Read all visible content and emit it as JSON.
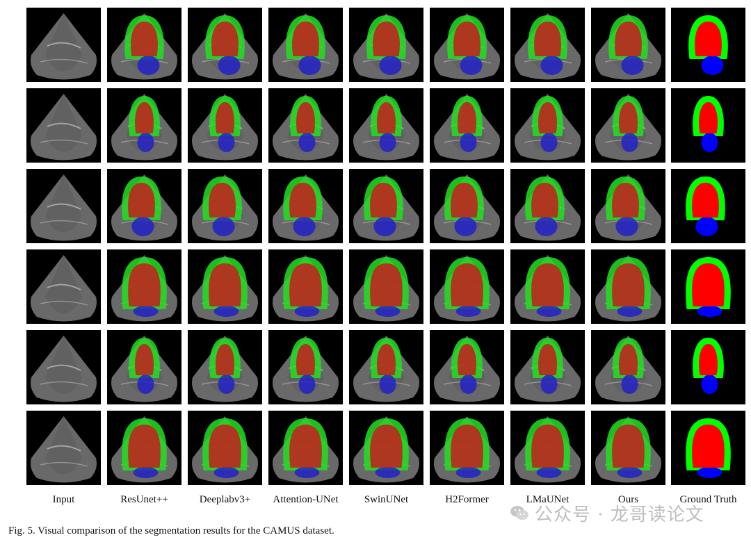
{
  "figure": {
    "columns": [
      "Input",
      "ResUnet++",
      "Deeplabv3+",
      "Attention-UNet",
      "SwinUNet",
      "H2Former",
      "LMaUNet",
      "Ours",
      "Ground Truth"
    ],
    "row_count": 6,
    "caption": "Fig. 5.  Visual comparison of the segmentation results for the CAMUS dataset.",
    "colors": {
      "background": "#000000",
      "myocardium": "#22e022",
      "left_ventricle": "#c41d1d",
      "left_atrium": "#2222c8",
      "ground_truth_myocardium": "#00ff00",
      "ground_truth_left_ventricle": "#ff0000",
      "ground_truth_left_atrium": "#0000ff",
      "ultrasound_gray": "#8c8c8c"
    }
  },
  "watermark": {
    "icon": "wechat-icon",
    "text": "公众号 · 龙哥读论文"
  }
}
